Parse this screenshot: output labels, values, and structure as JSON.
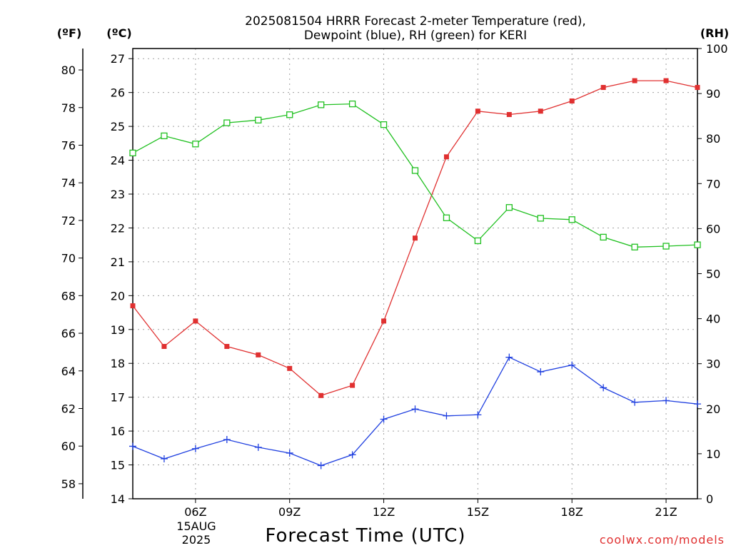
{
  "chart_data": {
    "type": "line",
    "title_line1": "2025081504 HRRR Forecast 2-meter Temperature (red),",
    "title_line2": "Dewpoint (blue), RH (green) for KERI",
    "xlabel": "Forecast Time (UTC)",
    "credit": "coolwx.com/models",
    "units": {
      "fahrenheit": "(ºF)",
      "celsius": "(ºC)",
      "rh": "(RH)"
    },
    "date_label": [
      "15AUG",
      "2025"
    ],
    "x": [
      4,
      5,
      6,
      7,
      8,
      9,
      10,
      11,
      12,
      13,
      14,
      15,
      16,
      17,
      18,
      19,
      20,
      21,
      22
    ],
    "xlim": [
      4,
      22
    ],
    "x_ticks": [
      6,
      9,
      12,
      15,
      18,
      21
    ],
    "x_tick_labels": [
      "06Z",
      "09Z",
      "12Z",
      "15Z",
      "18Z",
      "21Z"
    ],
    "ylim_c": [
      14,
      27.3
    ],
    "yticks_c": [
      14,
      15,
      16,
      17,
      18,
      19,
      20,
      21,
      22,
      23,
      24,
      25,
      26,
      27
    ],
    "yticks_f": [
      58,
      60,
      62,
      64,
      66,
      68,
      70,
      72,
      74,
      76,
      78,
      80
    ],
    "ylim_rh": [
      0,
      100
    ],
    "yticks_rh": [
      0,
      10,
      20,
      30,
      40,
      50,
      60,
      70,
      80,
      90,
      100
    ],
    "grid": true,
    "series": [
      {
        "key": "temperature",
        "axis": "c",
        "color": "#e03030",
        "marker": "filled-square",
        "values": [
          19.7,
          18.5,
          19.25,
          18.5,
          18.25,
          17.85,
          17.05,
          17.35,
          19.25,
          21.7,
          24.1,
          25.45,
          25.35,
          25.45,
          25.75,
          26.15,
          26.35,
          26.35,
          26.15
        ]
      },
      {
        "key": "dewpoint",
        "axis": "c",
        "color": "#2040e0",
        "marker": "plus",
        "values": [
          15.55,
          15.18,
          15.48,
          15.75,
          15.52,
          15.35,
          14.98,
          15.3,
          16.35,
          16.65,
          16.45,
          16.48,
          18.18,
          17.75,
          17.95,
          17.28,
          16.85,
          16.9,
          16.8
        ]
      },
      {
        "key": "rh",
        "axis": "rh",
        "color": "#20c020",
        "marker": "open-square",
        "values": [
          76.8,
          80.6,
          78.8,
          83.5,
          84.1,
          85.3,
          87.5,
          87.7,
          83.1,
          72.9,
          62.4,
          57.3,
          64.7,
          62.3,
          62.0,
          58.1,
          55.9,
          56.1,
          56.4
        ]
      }
    ]
  }
}
